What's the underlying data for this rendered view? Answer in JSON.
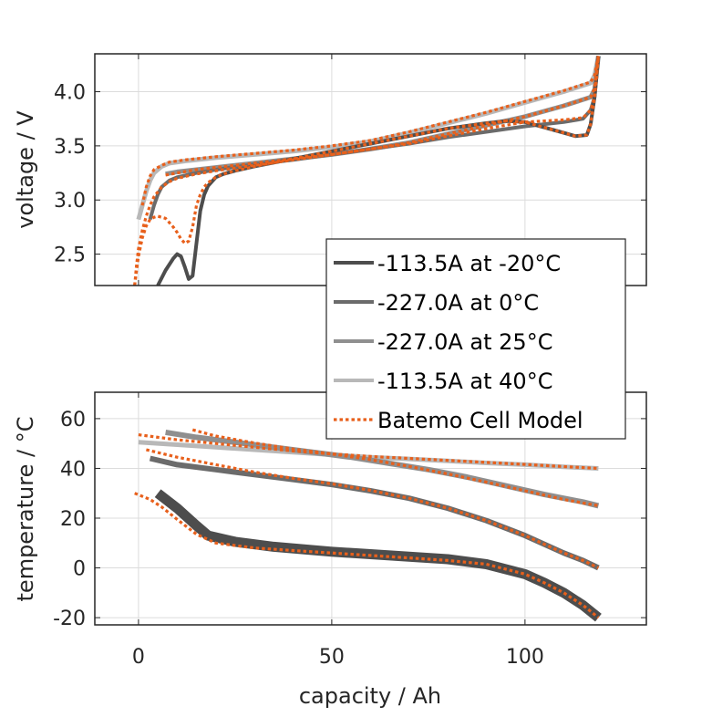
{
  "chart_data": [
    {
      "type": "line",
      "panel": "top",
      "title": "",
      "xlabel": "",
      "ylabel": "voltage / V",
      "xlim": [
        -11.3,
        131.4
      ],
      "ylim": [
        2.21,
        4.35
      ],
      "xticks": [
        0,
        50,
        100
      ],
      "yticks": [
        2.5,
        3.0,
        3.5,
        4.0
      ],
      "yticklabels": [
        "2.5",
        "3.0",
        "3.5",
        "4.0"
      ],
      "xticklabels_visible": false,
      "grid": true,
      "series": [
        {
          "name": "-113.5A at 40°C",
          "style": "measured-40",
          "x": [
            0,
            1,
            2,
            3,
            4,
            6,
            8,
            12,
            20,
            30,
            40,
            50,
            60,
            70,
            80,
            90,
            100,
            110,
            117,
            118,
            119
          ],
          "y": [
            2.82,
            2.95,
            3.08,
            3.18,
            3.25,
            3.31,
            3.34,
            3.36,
            3.39,
            3.42,
            3.45,
            3.49,
            3.54,
            3.62,
            3.71,
            3.8,
            3.9,
            4.0,
            4.08,
            4.15,
            4.33
          ]
        },
        {
          "name": "-227.0A at 25°C",
          "style": "measured-25",
          "x": [
            7,
            10,
            15,
            20,
            30,
            40,
            50,
            60,
            70,
            80,
            90,
            100,
            110,
            117,
            118,
            119
          ],
          "y": [
            3.24,
            3.26,
            3.28,
            3.3,
            3.34,
            3.38,
            3.42,
            3.47,
            3.53,
            3.61,
            3.69,
            3.77,
            3.87,
            3.95,
            4.02,
            4.33
          ]
        },
        {
          "name": "-227.0A at 0°C",
          "style": "measured-0",
          "x": [
            3,
            4,
            5,
            6,
            8,
            10,
            15,
            20,
            30,
            40,
            50,
            60,
            70,
            80,
            90,
            100,
            105,
            110,
            115,
            117,
            118,
            119
          ],
          "y": [
            2.82,
            2.95,
            3.05,
            3.12,
            3.18,
            3.21,
            3.25,
            3.28,
            3.33,
            3.37,
            3.42,
            3.47,
            3.52,
            3.58,
            3.63,
            3.68,
            3.7,
            3.72,
            3.75,
            3.83,
            3.95,
            4.33
          ]
        },
        {
          "name": "-113.5A at -20°C",
          "style": "measured-minus20",
          "x": [
            5,
            7,
            9,
            10,
            11,
            12,
            13,
            14,
            15,
            16,
            17,
            18,
            20,
            22,
            25,
            30,
            40,
            50,
            60,
            70,
            80,
            90,
            95,
            100,
            105,
            110,
            113,
            116,
            117,
            118,
            119
          ],
          "y": [
            2.21,
            2.35,
            2.46,
            2.5,
            2.48,
            2.38,
            2.27,
            2.3,
            2.6,
            2.9,
            3.05,
            3.13,
            3.21,
            3.24,
            3.27,
            3.31,
            3.38,
            3.45,
            3.52,
            3.59,
            3.66,
            3.71,
            3.73,
            3.72,
            3.67,
            3.62,
            3.59,
            3.6,
            3.7,
            3.95,
            4.33
          ]
        },
        {
          "name": "Batemo Cell Model (40°C)",
          "style": "model",
          "x": [
            1,
            2,
            3,
            4,
            6,
            8,
            12,
            20,
            30,
            40,
            50,
            60,
            70,
            80,
            90,
            100,
            110,
            117,
            118,
            119
          ],
          "y": [
            2.95,
            3.12,
            3.22,
            3.28,
            3.32,
            3.35,
            3.37,
            3.4,
            3.43,
            3.46,
            3.5,
            3.55,
            3.63,
            3.72,
            3.81,
            3.91,
            4.01,
            4.09,
            4.15,
            4.33
          ]
        },
        {
          "name": "Batemo Cell Model (25°C)",
          "style": "model",
          "x": [
            7,
            10,
            15,
            20,
            30,
            40,
            50,
            60,
            70,
            80,
            90,
            100,
            110,
            117,
            118,
            119
          ],
          "y": [
            3.23,
            3.25,
            3.28,
            3.3,
            3.34,
            3.38,
            3.42,
            3.47,
            3.53,
            3.61,
            3.69,
            3.77,
            3.87,
            3.95,
            4.03,
            4.33
          ]
        },
        {
          "name": "Batemo Cell Model (0°C)",
          "style": "model",
          "x": [
            -1,
            -0.5,
            0,
            1,
            2,
            3,
            4,
            6,
            8,
            10,
            15,
            20,
            30,
            40,
            50,
            60,
            70,
            80,
            90,
            100,
            110,
            115,
            117,
            118,
            119
          ],
          "y": [
            2.21,
            2.4,
            2.55,
            2.72,
            2.85,
            2.95,
            3.03,
            3.12,
            3.17,
            3.2,
            3.24,
            3.27,
            3.32,
            3.37,
            3.42,
            3.47,
            3.52,
            3.59,
            3.66,
            3.72,
            3.74,
            3.76,
            3.83,
            3.95,
            4.33
          ]
        },
        {
          "name": "Batemo Cell Model (-20°C)",
          "style": "model",
          "x": [
            -1,
            -0.5,
            0,
            1,
            2,
            3,
            4,
            5,
            7,
            9,
            10,
            11,
            12,
            13,
            14,
            15,
            16,
            17,
            18,
            20,
            22,
            25,
            30,
            40,
            50,
            60,
            70,
            80,
            90,
            95,
            100,
            105,
            110,
            113,
            116,
            117,
            118,
            119
          ],
          "y": [
            2.21,
            2.35,
            2.48,
            2.65,
            2.76,
            2.82,
            2.84,
            2.85,
            2.83,
            2.75,
            2.7,
            2.64,
            2.6,
            2.62,
            2.75,
            2.95,
            3.05,
            3.12,
            3.16,
            3.21,
            3.24,
            3.27,
            3.31,
            3.38,
            3.45,
            3.52,
            3.59,
            3.66,
            3.71,
            3.73,
            3.72,
            3.67,
            3.62,
            3.59,
            3.6,
            3.7,
            3.95,
            4.33
          ]
        }
      ]
    },
    {
      "type": "line",
      "panel": "bottom",
      "title": "",
      "xlabel": "capacity / Ah",
      "ylabel": "temperature / °C",
      "xlim": [
        -11.3,
        131.4
      ],
      "ylim": [
        -22.9,
        70.6
      ],
      "xticks": [
        0,
        50,
        100
      ],
      "xticklabels": [
        "0",
        "50",
        "100"
      ],
      "yticks": [
        -20,
        0,
        20,
        40,
        60
      ],
      "yticklabels": [
        "-20",
        "0",
        "20",
        "40",
        "60"
      ],
      "grid": true,
      "series": [
        {
          "name": "-113.5A at 40°C",
          "style": "measured-40-band",
          "x": [
            0,
            10,
            20,
            30,
            40,
            50,
            60,
            70,
            80,
            90,
            100,
            110,
            119
          ],
          "y": [
            50.5,
            49.5,
            48.5,
            47.5,
            46.5,
            45.5,
            44.5,
            43.8,
            43,
            42.2,
            41.5,
            40.6,
            40
          ]
        },
        {
          "name": "-227.0A at 25°C",
          "style": "measured-25-band",
          "x": [
            7,
            15,
            25,
            35,
            45,
            55,
            65,
            75,
            85,
            95,
            105,
            115,
            119
          ],
          "y": [
            54.5,
            52.5,
            50.5,
            48.5,
            46.5,
            44.5,
            42,
            39.5,
            36.5,
            33,
            29.5,
            26.5,
            25
          ]
        },
        {
          "name": "-227.0A at 0°C",
          "style": "measured-0-band",
          "x": [
            3,
            10,
            20,
            30,
            40,
            50,
            60,
            70,
            80,
            90,
            100,
            110,
            115,
            119
          ],
          "y": [
            44,
            41.5,
            39.5,
            37.5,
            35.5,
            33.5,
            31,
            28,
            24,
            19,
            13,
            6,
            3,
            0
          ]
        },
        {
          "name": "-113.5A at -20°C",
          "style": "measured-minus20-band",
          "x": [
            5,
            10,
            15,
            18,
            25,
            35,
            50,
            60,
            70,
            80,
            90,
            100,
            105,
            110,
            115,
            119
          ],
          "y": [
            30,
            24,
            17,
            13,
            10.5,
            8.5,
            6.5,
            5.5,
            4.5,
            3.5,
            1.5,
            -2.5,
            -6,
            -10,
            -15,
            -20
          ]
        },
        {
          "name": "Batemo Cell Model (40°C)",
          "style": "model",
          "x": [
            0,
            10,
            20,
            30,
            40,
            50,
            60,
            70,
            80,
            90,
            100,
            110,
            119
          ],
          "y": [
            53.5,
            51.5,
            50,
            48.5,
            47,
            45.8,
            44.8,
            44,
            43.2,
            42.4,
            41.6,
            40.7,
            40
          ]
        },
        {
          "name": "Batemo Cell Model (25°C)",
          "style": "model",
          "x": [
            14,
            20,
            30,
            40,
            50,
            60,
            70,
            80,
            90,
            100,
            110,
            119
          ],
          "y": [
            55.5,
            53,
            50.2,
            47.8,
            45.8,
            43.5,
            40.8,
            37.8,
            34.5,
            31,
            27.5,
            25
          ]
        },
        {
          "name": "Batemo Cell Model (0°C)",
          "style": "model",
          "x": [
            2,
            10,
            20,
            30,
            40,
            50,
            60,
            70,
            80,
            90,
            100,
            110,
            115,
            119
          ],
          "y": [
            47.5,
            44.5,
            41.5,
            38.5,
            36,
            33.8,
            31.2,
            28,
            24,
            19,
            13,
            6,
            3,
            0
          ]
        },
        {
          "name": "Batemo Cell Model (-20°C)",
          "style": "model",
          "x": [
            -1,
            3,
            6,
            10,
            15,
            20,
            30,
            40,
            50,
            60,
            70,
            80,
            90,
            100,
            105,
            110,
            115,
            119
          ],
          "y": [
            30,
            27.5,
            24.5,
            19.5,
            13.5,
            10,
            8,
            7,
            6,
            5,
            4,
            3,
            1.5,
            -2.5,
            -6,
            -10,
            -15,
            -20
          ]
        }
      ]
    }
  ],
  "legend": {
    "placement": "center-right, spanning between panels",
    "entries": [
      {
        "label": "-113.5A at -20°C",
        "style": "measured-minus20"
      },
      {
        "label": "-227.0A at 0°C",
        "style": "measured-0"
      },
      {
        "label": "-227.0A at 25°C",
        "style": "measured-25"
      },
      {
        "label": "-113.5A at 40°C",
        "style": "measured-40"
      },
      {
        "label": "Batemo Cell Model",
        "style": "model"
      }
    ]
  },
  "styles": {
    "measured-minus20": "#4d4d4d",
    "measured-0": "#6b6b6b",
    "measured-25": "#8f8f8f",
    "measured-40": "#b8b8b8",
    "model": "#e8601c"
  }
}
